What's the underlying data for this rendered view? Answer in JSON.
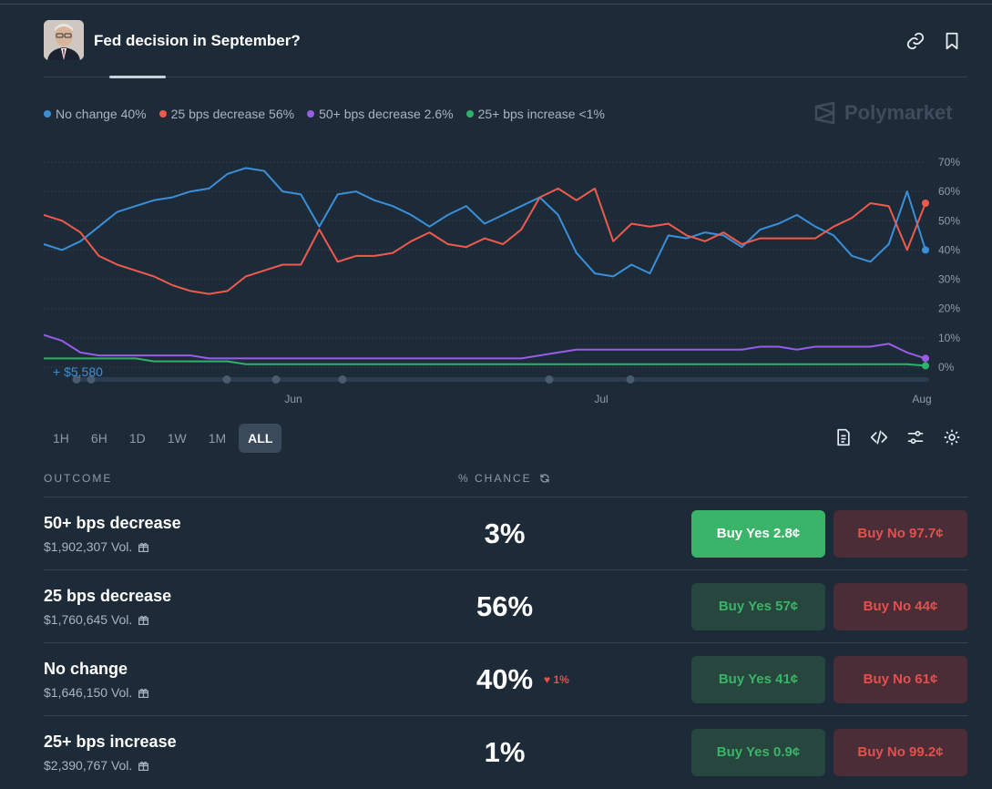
{
  "header": {
    "title": "Fed decision in September?"
  },
  "legend": [
    {
      "label": "No change 40%",
      "color": "#3b8fd9"
    },
    {
      "label": "25 bps decrease 56%",
      "color": "#f05a4c"
    },
    {
      "label": "50+ bps decrease 2.6%",
      "color": "#9a5ce6"
    },
    {
      "label": "25+ bps increase <1%",
      "color": "#2cb36b"
    }
  ],
  "brand": {
    "name": "Polymarket"
  },
  "chart_data": {
    "type": "line",
    "x_ticks": [
      "Jun",
      "Jul",
      "Aug"
    ],
    "y_ticks": [
      "70%",
      "60%",
      "50%",
      "40%",
      "30%",
      "20%",
      "10%",
      "0%"
    ],
    "ylim": [
      0,
      70
    ],
    "volume_annotation": "+ $5,580",
    "series": [
      {
        "name": "No change",
        "color": "#3b8fd9",
        "values": [
          42,
          40,
          43,
          48,
          53,
          55,
          57,
          58,
          60,
          61,
          66,
          68,
          67,
          60,
          59,
          48,
          59,
          60,
          57,
          55,
          52,
          48,
          52,
          55,
          49,
          52,
          55,
          58,
          52,
          39,
          32,
          31,
          35,
          32,
          45,
          44,
          46,
          45,
          41,
          47,
          49,
          52,
          48,
          45,
          38,
          36,
          42,
          60,
          40
        ]
      },
      {
        "name": "25 bps decrease",
        "color": "#f05a4c",
        "values": [
          52,
          50,
          46,
          38,
          35,
          33,
          31,
          28,
          26,
          25,
          26,
          31,
          33,
          35,
          35,
          47,
          36,
          38,
          38,
          39,
          43,
          46,
          42,
          41,
          44,
          42,
          47,
          58,
          61,
          57,
          61,
          43,
          49,
          48,
          49,
          45,
          43,
          46,
          42,
          44,
          44,
          44,
          44,
          48,
          51,
          56,
          55,
          40,
          56
        ]
      },
      {
        "name": "50+ bps decrease",
        "color": "#9a5ce6",
        "values": [
          11,
          9,
          5,
          4,
          4,
          4,
          4,
          4,
          4,
          3,
          3,
          3,
          3,
          3,
          3,
          3,
          3,
          3,
          3,
          3,
          3,
          3,
          3,
          3,
          3,
          3,
          3,
          4,
          5,
          6,
          6,
          6,
          6,
          6,
          6,
          6,
          6,
          6,
          6,
          7,
          7,
          6,
          7,
          7,
          7,
          7,
          8,
          5,
          3
        ]
      },
      {
        "name": "25+ bps increase",
        "color": "#2cb36b",
        "values": [
          3,
          3,
          3,
          3,
          3,
          3,
          2,
          2,
          2,
          2,
          2,
          1,
          1,
          1,
          1,
          1,
          1,
          1,
          1,
          1,
          1,
          1,
          1,
          1,
          1,
          1,
          1,
          1,
          1,
          1,
          1,
          1,
          1,
          1,
          1,
          1,
          1,
          1,
          1,
          1,
          1,
          1,
          1,
          1,
          1,
          1,
          1,
          1,
          0.5
        ]
      }
    ]
  },
  "ranges": [
    "1H",
    "6H",
    "1D",
    "1W",
    "1M",
    "ALL"
  ],
  "ranges_active": "ALL",
  "table": {
    "col_outcome": "OUTCOME",
    "col_chance": "% CHANCE",
    "rows": [
      {
        "name": "50+ bps decrease",
        "volume": "$1,902,307 Vol.",
        "chance": "3%",
        "delta": "",
        "yes": "Buy Yes 2.8¢",
        "no": "Buy No 97.7¢"
      },
      {
        "name": "25 bps decrease",
        "volume": "$1,760,645 Vol.",
        "chance": "56%",
        "delta": "",
        "yes": "Buy Yes 57¢",
        "no": "Buy No 44¢"
      },
      {
        "name": "No change",
        "volume": "$1,646,150 Vol.",
        "chance": "40%",
        "delta": "1%",
        "yes": "Buy Yes 41¢",
        "no": "Buy No 61¢"
      },
      {
        "name": "25+ bps increase",
        "volume": "$2,390,767 Vol.",
        "chance": "1%",
        "delta": "",
        "yes": "Buy Yes 0.9¢",
        "no": "Buy No 99.2¢"
      }
    ]
  }
}
